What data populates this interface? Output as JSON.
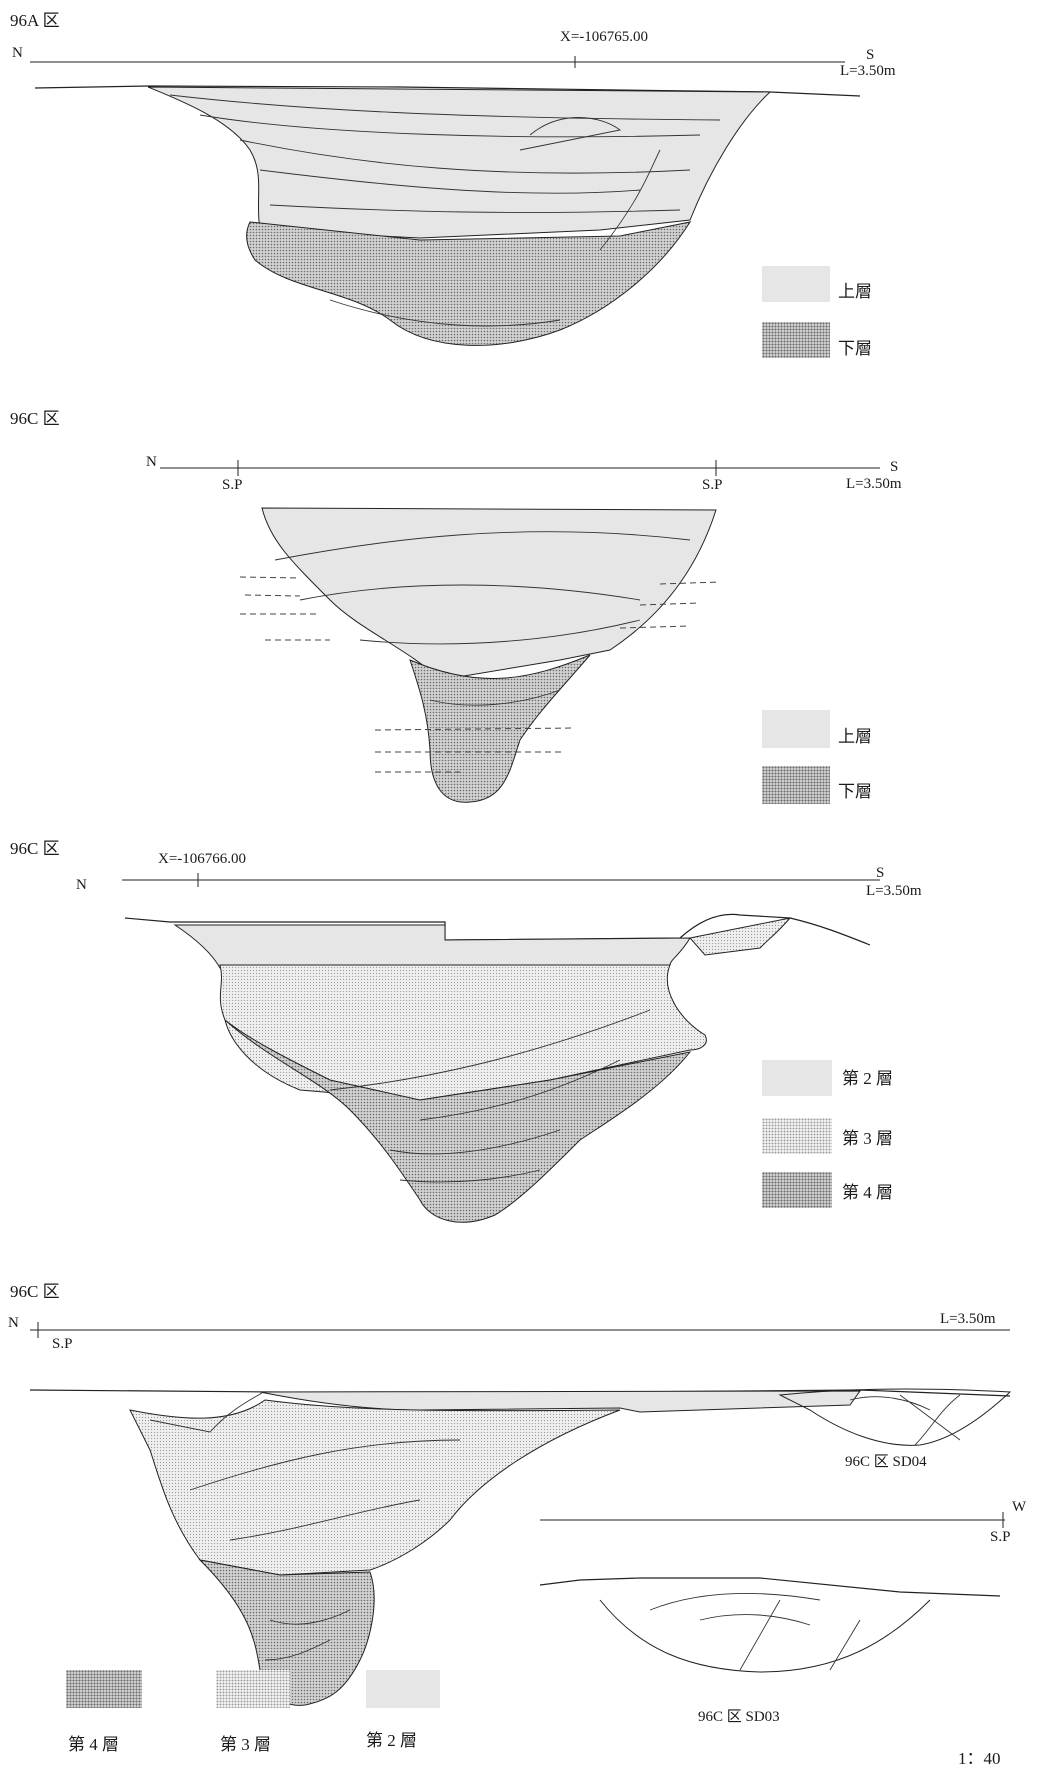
{
  "sections": [
    {
      "title": "96A 区",
      "north": "N",
      "south": "S",
      "level": "L=3.50m",
      "coordinate": "X=-106765.00",
      "legend": [
        "上層",
        "下層"
      ]
    },
    {
      "title": "96C 区",
      "north": "N",
      "south": "S",
      "level": "L=3.50m",
      "markers": [
        "S.P",
        "S.P"
      ],
      "legend": [
        "上層",
        "下層"
      ]
    },
    {
      "title": "96C 区",
      "north": "N",
      "south": "S",
      "level": "L=3.50m",
      "coordinate": "X=-106766.00",
      "legend": [
        "第 2 層",
        "第 3 層",
        "第 4 層"
      ]
    },
    {
      "title": "96C 区",
      "north": "N",
      "marker": "S.P",
      "level": "L=3.50m",
      "sub1_name": "96C 区 SD04",
      "sub2_name": "96C 区 SD03",
      "sub2_west": "W",
      "sub2_marker": "S.P",
      "legend": [
        "第 4 層",
        "第 3 層",
        "第 2 層"
      ]
    }
  ],
  "scale": "1：40",
  "colors": {
    "upper": "#e6e6e6",
    "lower": "#cfcfcf",
    "line": "#222222"
  }
}
